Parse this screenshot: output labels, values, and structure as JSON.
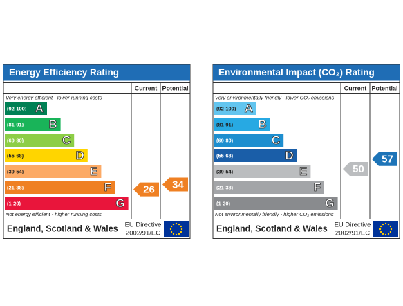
{
  "panels": [
    {
      "title": "Energy Efficiency Rating",
      "header": {
        "current": "Current",
        "potential": "Potential"
      },
      "top_note": "Very energy efficient - lower running costs",
      "bottom_note": "Not energy efficient - higher running costs",
      "bands": [
        {
          "range": "(92-100)",
          "letter": "A"
        },
        {
          "range": "(81-91)",
          "letter": "B"
        },
        {
          "range": "(69-80)",
          "letter": "C"
        },
        {
          "range": "(55-68)",
          "letter": "D"
        },
        {
          "range": "(39-54)",
          "letter": "E"
        },
        {
          "range": "(21-38)",
          "letter": "F"
        },
        {
          "range": "(1-20)",
          "letter": "G"
        }
      ],
      "current": 26,
      "potential": 34,
      "footer": {
        "region": "England, Scotland & Wales",
        "directive": [
          "EU Directive",
          "2002/91/EC"
        ]
      }
    },
    {
      "title": "Environmental Impact (CO₂) Rating",
      "header": {
        "current": "Current",
        "potential": "Potential"
      },
      "top_note": "Very environmentally friendly - lower CO₂ emissions",
      "bottom_note": "Not environmentally friendly - higher CO₂ emissions",
      "bands": [
        {
          "range": "(92-100)",
          "letter": "A"
        },
        {
          "range": "(81-91)",
          "letter": "B"
        },
        {
          "range": "(69-80)",
          "letter": "C"
        },
        {
          "range": "(55-68)",
          "letter": "D"
        },
        {
          "range": "(39-54)",
          "letter": "E"
        },
        {
          "range": "(21-38)",
          "letter": "F"
        },
        {
          "range": "(1-20)",
          "letter": "G"
        }
      ],
      "current": 50,
      "potential": 57,
      "footer": {
        "region": "England, Scotland & Wales",
        "directive": [
          "EU Directive",
          "2002/91/EC"
        ]
      }
    }
  ]
}
